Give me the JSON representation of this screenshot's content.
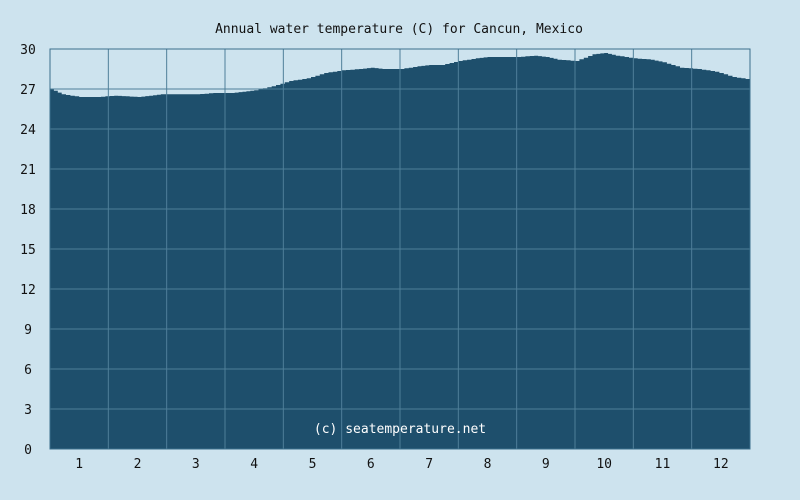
{
  "chart_data": {
    "type": "area",
    "title": "Annual water temperature (C) for Cancun, Mexico",
    "xlabel": "",
    "ylabel": "",
    "categories": [
      "1",
      "2",
      "3",
      "4",
      "5",
      "6",
      "7",
      "8",
      "9",
      "10",
      "11",
      "12"
    ],
    "y_ticks": [
      "0",
      "3",
      "6",
      "9",
      "12",
      "15",
      "18",
      "21",
      "24",
      "27",
      "30"
    ],
    "ylim": [
      0,
      30
    ],
    "xlim": [
      0.5,
      12.5
    ],
    "grid": true,
    "fill_color": "#1e4f6c",
    "grid_color": "#4f7f99",
    "background_color": "#cde3ee",
    "watermark": "(c) seatemperature.net",
    "series": [
      {
        "x": [
          0.5,
          0.7,
          1.0,
          1.3,
          1.6,
          2.0,
          2.4,
          2.7,
          3.0,
          3.3,
          3.6,
          4.0,
          4.3,
          4.6,
          4.9,
          5.2,
          5.5,
          5.8,
          6.0,
          6.2,
          6.5,
          6.8,
          7.0,
          7.2,
          7.5,
          7.8,
          8.0,
          8.2,
          8.5,
          8.8,
          9.0,
          9.2,
          9.5,
          9.8,
          10.0,
          10.2,
          10.5,
          10.8,
          11.0,
          11.3,
          11.6,
          11.9,
          12.2,
          12.5
        ],
        "y": [
          27.0,
          26.6,
          26.4,
          26.4,
          26.5,
          26.4,
          26.6,
          26.6,
          26.6,
          26.7,
          26.7,
          26.9,
          27.2,
          27.6,
          27.8,
          28.2,
          28.4,
          28.5,
          28.6,
          28.5,
          28.5,
          28.7,
          28.8,
          28.8,
          29.1,
          29.3,
          29.4,
          29.4,
          29.4,
          29.5,
          29.4,
          29.2,
          29.1,
          29.6,
          29.7,
          29.5,
          29.3,
          29.2,
          29.0,
          28.6,
          28.5,
          28.3,
          27.9,
          27.7
        ]
      }
    ]
  }
}
